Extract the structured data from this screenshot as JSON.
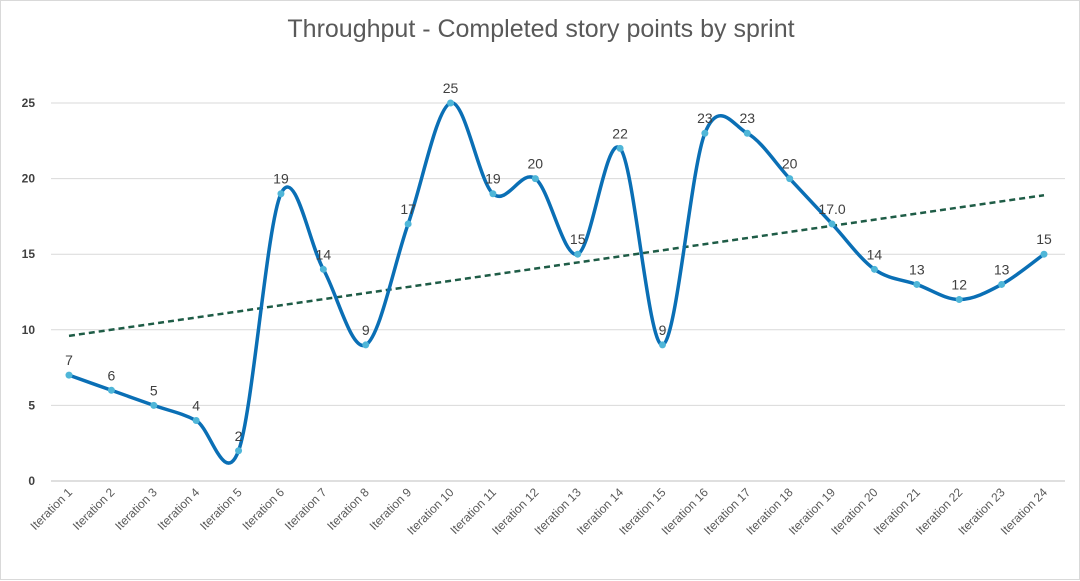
{
  "chart_data": {
    "type": "line",
    "title": "Throughput - Completed story points by sprint",
    "categories": [
      "Iteration 1",
      "Iteration 2",
      "Iteration 3",
      "Iteration 4",
      "Iteration 5",
      "Iteration 6",
      "Iteration 7",
      "Iteration 8",
      "Iteration 9",
      "Iteration 10",
      "Iteration 11",
      "Iteration 12",
      "Iteration 13",
      "Iteration 14",
      "Iteration 15",
      "Iteration 16",
      "Iteration 17",
      "Iteration 18",
      "Iteration 19",
      "Iteration 20",
      "Iteration 21",
      "Iteration 22",
      "Iteration 23",
      "Iteration 24"
    ],
    "series": [
      {
        "values": [
          7,
          6,
          5,
          4,
          2,
          19,
          14,
          9,
          17,
          25,
          19,
          20,
          15,
          22,
          9,
          23,
          23,
          20,
          17,
          14,
          13,
          12,
          13,
          15
        ],
        "data_labels": [
          "7",
          "6",
          "5",
          "4",
          "2",
          "19",
          "14",
          "9",
          "17",
          "25",
          "19",
          "20",
          "15",
          "22",
          "9",
          "23",
          "23",
          "20",
          "17.0",
          "14",
          "13",
          "12",
          "13",
          "15"
        ],
        "color": "#0a6fb5",
        "marker_color": "#4fb6d8",
        "smooth": true
      }
    ],
    "trendline": {
      "type": "linear",
      "style": "dashed",
      "color": "#1e5c46",
      "start_value": 9.6,
      "end_value": 18.9
    },
    "y_ticks": [
      "0",
      "5",
      "10",
      "15",
      "20",
      "25"
    ],
    "ylim": [
      0,
      27
    ],
    "grid": "horizontal",
    "legend": "none"
  }
}
